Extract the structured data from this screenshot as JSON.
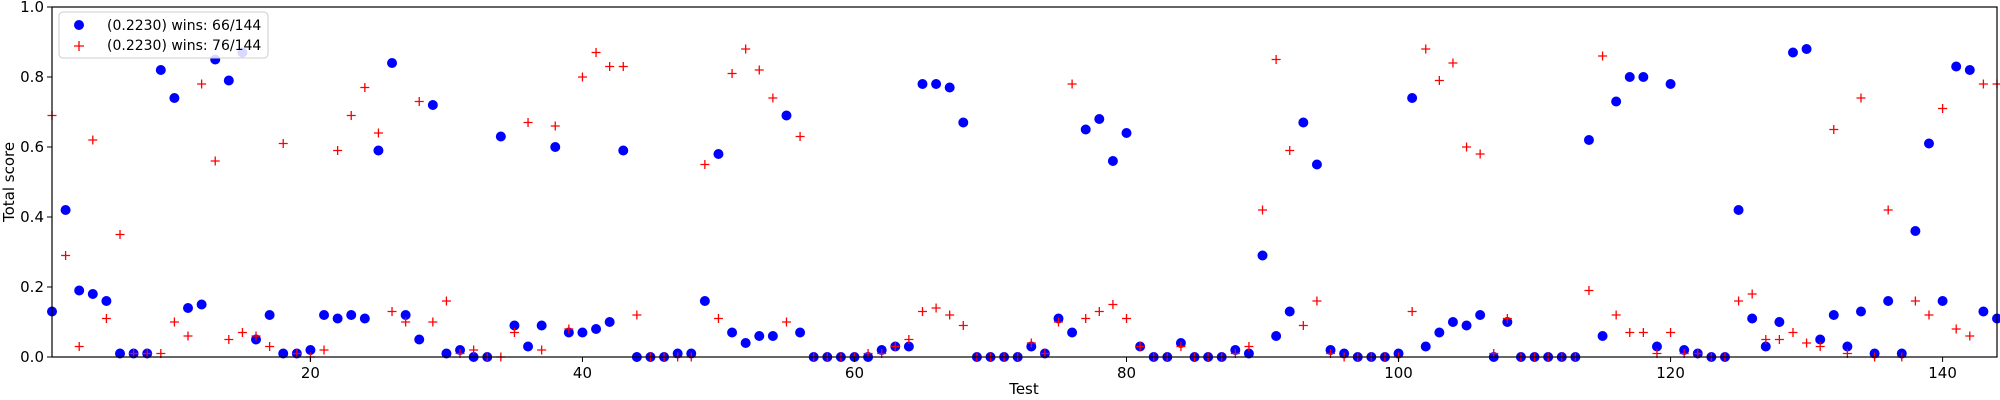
{
  "chart_data": {
    "type": "scatter",
    "xlabel": "Test",
    "ylabel": "Total score",
    "xlim": [
      1,
      144
    ],
    "ylim": [
      0.0,
      1.0
    ],
    "x_ticks": [
      20,
      40,
      60,
      80,
      100,
      120,
      140
    ],
    "y_ticks": [
      0.0,
      0.2,
      0.4,
      0.6,
      0.8,
      1.0
    ],
    "x_tick_labels": [
      "20",
      "40",
      "60",
      "80",
      "100",
      "120",
      "140"
    ],
    "y_tick_labels": [
      "0.0",
      "0.2",
      "0.4",
      "0.6",
      "0.8",
      "1.0"
    ],
    "grid": false,
    "legend_position": "top-left",
    "series": [
      {
        "name": "(0.2230) wins: 66/144",
        "marker": "circle",
        "color": "#0000ff",
        "values": [
          0.13,
          0.42,
          0.19,
          0.18,
          0.16,
          0.01,
          0.01,
          0.01,
          0.82,
          0.74,
          0.14,
          0.15,
          0.85,
          0.79,
          0.87,
          0.05,
          0.12,
          0.01,
          0.01,
          0.02,
          0.12,
          0.11,
          0.12,
          0.11,
          0.59,
          0.84,
          0.12,
          0.05,
          0.72,
          0.01,
          0.02,
          0.0,
          0.0,
          0.63,
          0.09,
          0.03,
          0.09,
          0.6,
          0.07,
          0.07,
          0.08,
          0.1,
          0.59,
          0.0,
          0.0,
          0.0,
          0.01,
          0.01,
          0.16,
          0.58,
          0.07,
          0.04,
          0.06,
          0.06,
          0.69,
          0.07,
          0.0,
          0.0,
          0.0,
          0.0,
          0.0,
          0.02,
          0.03,
          0.03,
          0.78,
          0.78,
          0.77,
          0.67,
          0.0,
          0.0,
          0.0,
          0.0,
          0.03,
          0.01,
          0.11,
          0.07,
          0.65,
          0.68,
          0.56,
          0.64,
          0.03,
          0.0,
          0.0,
          0.04,
          0.0,
          0.0,
          0.0,
          0.02,
          0.01,
          0.29,
          0.06,
          0.13,
          0.67,
          0.55,
          0.02,
          0.01,
          0.0,
          0.0,
          0.0,
          0.01,
          0.74,
          0.03,
          0.07,
          0.1,
          0.09,
          0.12,
          0.0,
          0.1,
          0.0,
          0.0,
          0.0,
          0.0,
          0.0,
          0.62,
          0.06,
          0.73,
          0.8,
          0.8,
          0.03,
          0.78,
          0.02,
          0.01,
          0.0,
          0.0,
          0.42,
          0.11,
          0.03,
          0.1,
          0.87,
          0.88,
          0.05,
          0.12,
          0.03,
          0.13,
          0.01,
          0.16,
          0.01,
          0.36,
          0.61,
          0.16,
          0.83,
          0.82,
          0.13,
          0.11
        ]
      },
      {
        "name": "(0.2230) wins: 76/144",
        "marker": "plus",
        "color": "#ff0000",
        "values": [
          0.69,
          0.29,
          0.03,
          0.62,
          0.11,
          0.35,
          0.01,
          0.01,
          0.01,
          0.1,
          0.06,
          0.78,
          0.56,
          0.05,
          0.07,
          0.06,
          0.03,
          0.61,
          0.01,
          0.0,
          0.02,
          0.59,
          0.69,
          0.77,
          0.64,
          0.13,
          0.1,
          0.73,
          0.1,
          0.16,
          0.01,
          0.02,
          0.0,
          0.0,
          0.07,
          0.67,
          0.02,
          0.66,
          0.08,
          0.8,
          0.87,
          0.83,
          0.83,
          0.12,
          0.0,
          0.0,
          0.0,
          0.0,
          0.55,
          0.11,
          0.81,
          0.88,
          0.82,
          0.74,
          0.1,
          0.63,
          0.0,
          0.0,
          0.0,
          0.0,
          0.01,
          0.01,
          0.03,
          0.05,
          0.13,
          0.14,
          0.12,
          0.09,
          0.0,
          0.0,
          0.0,
          0.0,
          0.04,
          0.01,
          0.1,
          0.78,
          0.11,
          0.13,
          0.15,
          0.11,
          0.03,
          0.0,
          0.0,
          0.03,
          0.0,
          0.0,
          0.0,
          0.01,
          0.03,
          0.42,
          0.85,
          0.59,
          0.09,
          0.16,
          0.01,
          0.0,
          0.0,
          0.0,
          0.0,
          0.0,
          0.13,
          0.88,
          0.79,
          0.84,
          0.6,
          0.58,
          0.01,
          0.11,
          0.0,
          0.0,
          0.0,
          0.0,
          0.0,
          0.19,
          0.86,
          0.12,
          0.07,
          0.07,
          0.01,
          0.07,
          0.01,
          0.01,
          0.0,
          0.0,
          0.16,
          0.18,
          0.05,
          0.05,
          0.07,
          0.04,
          0.03,
          0.65,
          0.01,
          0.74,
          0.0,
          0.42,
          0.0,
          0.16,
          0.12,
          0.71,
          0.08,
          0.06,
          0.78,
          0.78
        ]
      }
    ]
  }
}
